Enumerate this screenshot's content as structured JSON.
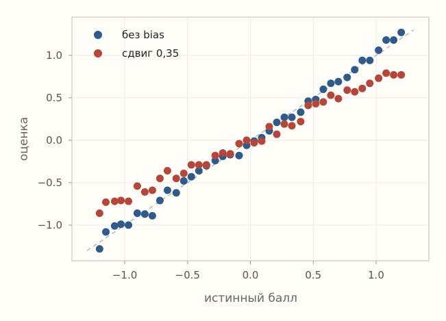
{
  "chart_data": {
    "type": "scatter",
    "xlabel": "истинный балл",
    "ylabel": "оценка",
    "xlim": [
      -1.42,
      1.42
    ],
    "ylim": [
      -1.42,
      1.45
    ],
    "xticks": [
      -1.0,
      -0.5,
      0.0,
      0.5,
      1.0
    ],
    "yticks": [
      -1.0,
      -0.5,
      0.0,
      0.5,
      1.0
    ],
    "xtick_labels": [
      "−1.0",
      "−0.5",
      "0.0",
      "0.5",
      "1.0"
    ],
    "ytick_labels": [
      "−1.0",
      "−0.5",
      "0.0",
      "0.5",
      "1.0"
    ],
    "grid": true,
    "legend_position": "top-left",
    "reference_line": {
      "x": [
        -1.3,
        1.3
      ],
      "y": [
        -1.3,
        1.3
      ],
      "style": "dashed",
      "color": "#bbbbbb"
    },
    "series": [
      {
        "name": "без bias",
        "color": "#2f5b8a",
        "points": [
          [
            -1.2,
            -1.28
          ],
          [
            -1.15,
            -1.08
          ],
          [
            -1.08,
            -1.01
          ],
          [
            -1.03,
            -0.99
          ],
          [
            -0.97,
            -1.0
          ],
          [
            -0.9,
            -0.86
          ],
          [
            -0.84,
            -0.87
          ],
          [
            -0.78,
            -0.89
          ],
          [
            -0.72,
            -0.71
          ],
          [
            -0.66,
            -0.59
          ],
          [
            -0.59,
            -0.62
          ],
          [
            -0.53,
            -0.48
          ],
          [
            -0.47,
            -0.43
          ],
          [
            -0.41,
            -0.36
          ],
          [
            -0.35,
            -0.3
          ],
          [
            -0.28,
            -0.24
          ],
          [
            -0.22,
            -0.19
          ],
          [
            -0.16,
            -0.17
          ],
          [
            -0.09,
            -0.18
          ],
          [
            -0.03,
            -0.06
          ],
          [
            0.03,
            -0.01
          ],
          [
            0.09,
            0.03
          ],
          [
            0.15,
            0.11
          ],
          [
            0.21,
            0.21
          ],
          [
            0.27,
            0.27
          ],
          [
            0.33,
            0.27
          ],
          [
            0.4,
            0.33
          ],
          [
            0.46,
            0.46
          ],
          [
            0.52,
            0.48
          ],
          [
            0.58,
            0.6
          ],
          [
            0.64,
            0.67
          ],
          [
            0.7,
            0.69
          ],
          [
            0.77,
            0.74
          ],
          [
            0.83,
            0.83
          ],
          [
            0.89,
            0.94
          ],
          [
            0.95,
            0.94
          ],
          [
            1.02,
            1.06
          ],
          [
            1.08,
            1.18
          ],
          [
            1.14,
            1.18
          ],
          [
            1.2,
            1.27
          ]
        ]
      },
      {
        "name": "сдвиг 0,35",
        "color": "#b5463a",
        "points": [
          [
            -1.2,
            -0.86
          ],
          [
            -1.15,
            -0.73
          ],
          [
            -1.08,
            -0.72
          ],
          [
            -1.03,
            -0.71
          ],
          [
            -0.97,
            -0.72
          ],
          [
            -0.9,
            -0.54
          ],
          [
            -0.84,
            -0.61
          ],
          [
            -0.78,
            -0.59
          ],
          [
            -0.72,
            -0.45
          ],
          [
            -0.66,
            -0.36
          ],
          [
            -0.59,
            -0.45
          ],
          [
            -0.53,
            -0.39
          ],
          [
            -0.47,
            -0.29
          ],
          [
            -0.41,
            -0.29
          ],
          [
            -0.35,
            -0.29
          ],
          [
            -0.28,
            -0.18
          ],
          [
            -0.22,
            -0.15
          ],
          [
            -0.16,
            -0.16
          ],
          [
            -0.09,
            -0.04
          ],
          [
            -0.03,
            0.0
          ],
          [
            0.03,
            -0.03
          ],
          [
            0.09,
            -0.01
          ],
          [
            0.15,
            0.16
          ],
          [
            0.21,
            0.07
          ],
          [
            0.27,
            0.19
          ],
          [
            0.33,
            0.17
          ],
          [
            0.4,
            0.22
          ],
          [
            0.46,
            0.41
          ],
          [
            0.52,
            0.43
          ],
          [
            0.58,
            0.45
          ],
          [
            0.64,
            0.53
          ],
          [
            0.7,
            0.49
          ],
          [
            0.77,
            0.59
          ],
          [
            0.83,
            0.57
          ],
          [
            0.89,
            0.61
          ],
          [
            0.95,
            0.67
          ],
          [
            1.02,
            0.73
          ],
          [
            1.08,
            0.79
          ],
          [
            1.14,
            0.77
          ],
          [
            1.2,
            0.77
          ]
        ]
      }
    ]
  }
}
